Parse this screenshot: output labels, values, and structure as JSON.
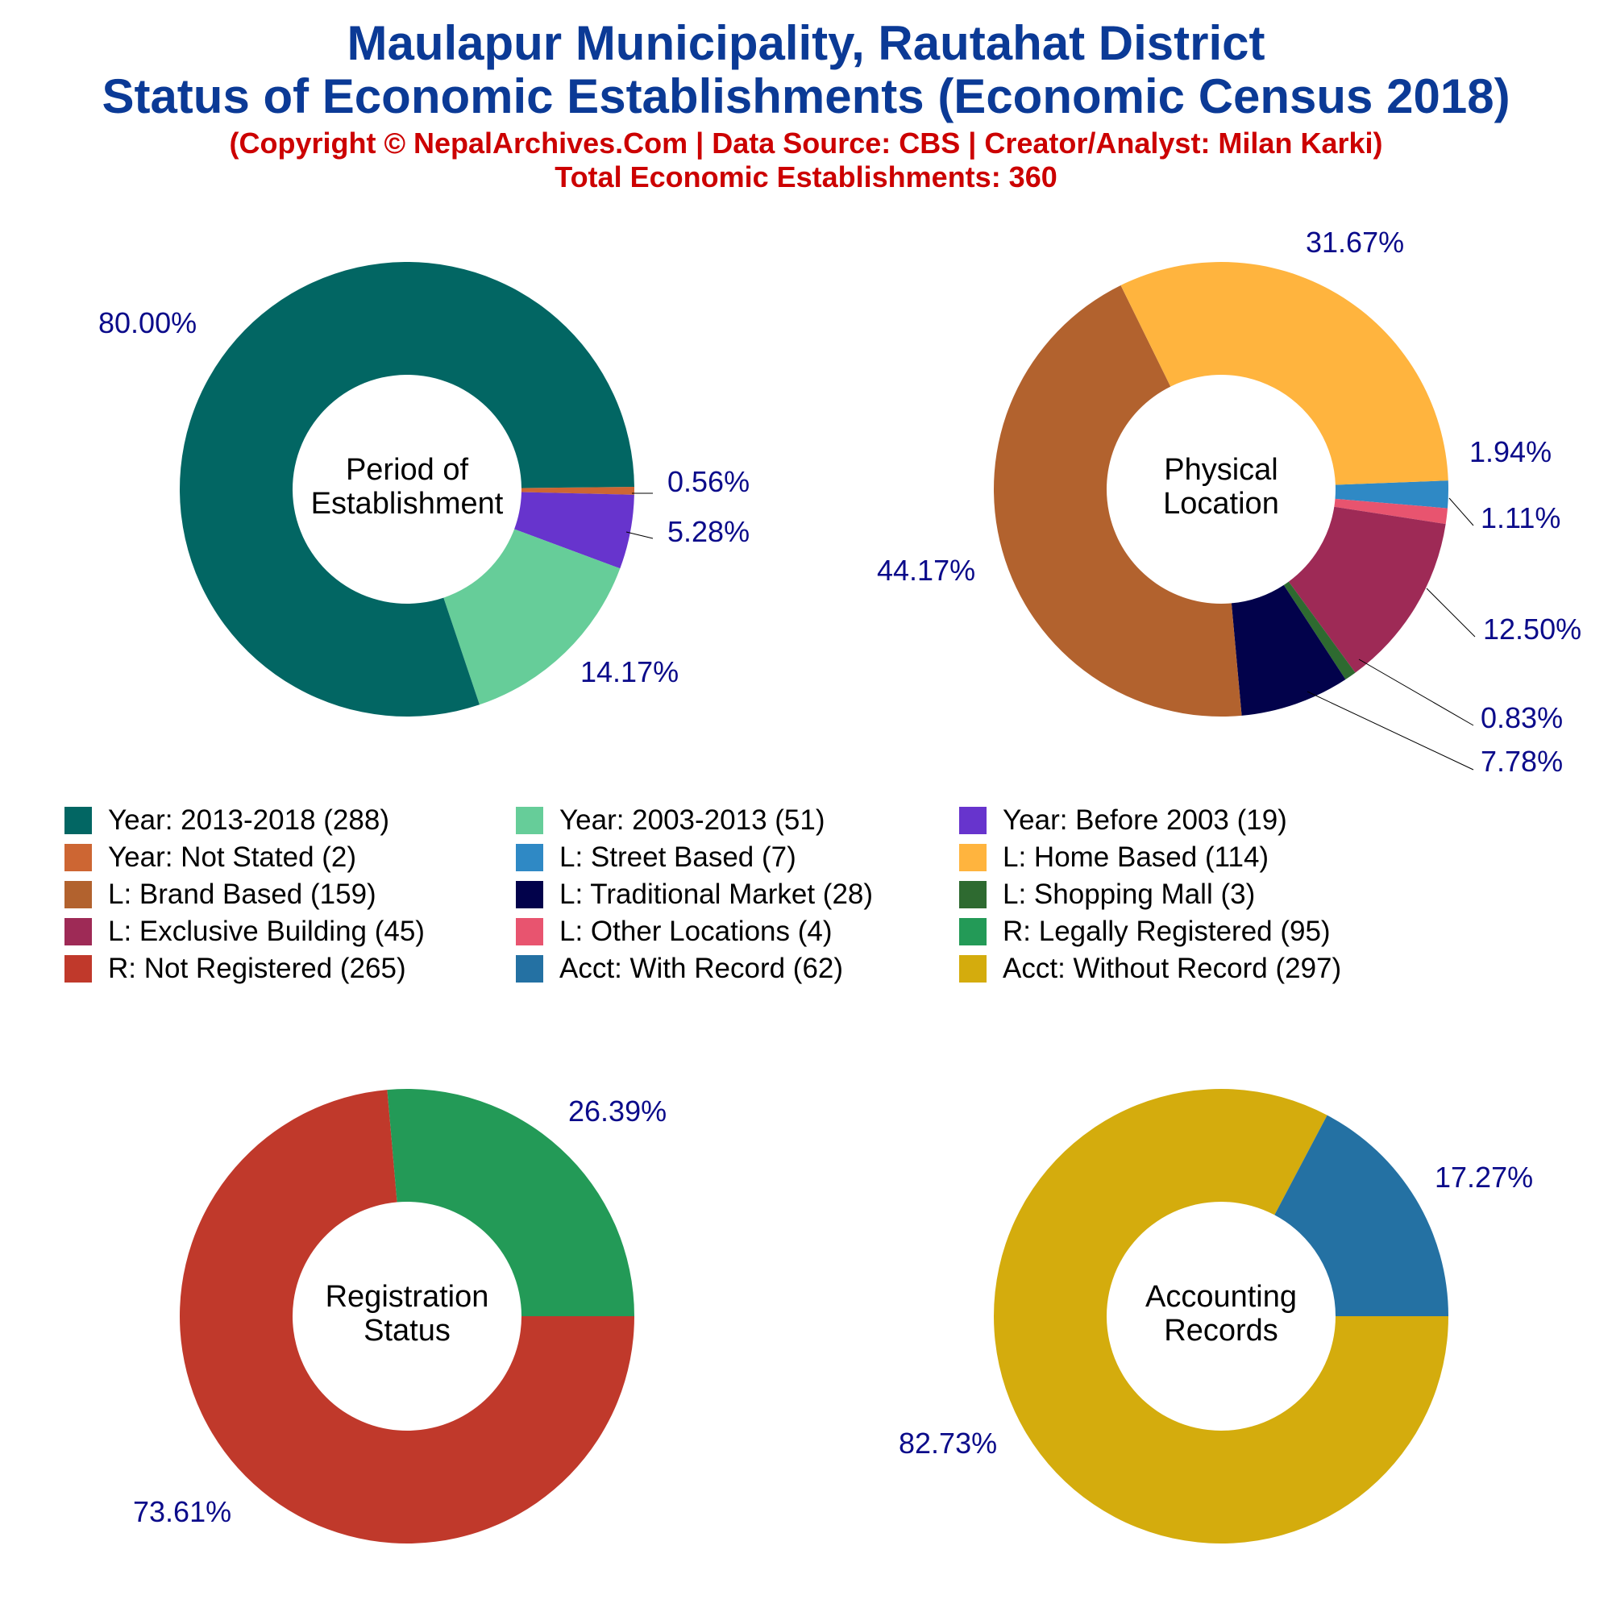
{
  "title_line1": "Maulapur Municipality, Rautahat District",
  "title_line2": "Status of Economic Establishments (Economic Census 2018)",
  "subtitle_line1": "(Copyright © NepalArchives.Com | Data Source: CBS | Creator/Analyst: Milan Karki)",
  "subtitle_line2": "Total Economic Establishments: 360",
  "legend": [
    {
      "label": "Year: 2013-2018 (288)",
      "color": "#026663"
    },
    {
      "label": "Year: 2003-2013 (51)",
      "color": "#66cd99"
    },
    {
      "label": "Year: Before 2003 (19)",
      "color": "#6734cd"
    },
    {
      "label": "Year: Not Stated (2)",
      "color": "#cd6633"
    },
    {
      "label": "L: Street Based (7)",
      "color": "#2f89c5"
    },
    {
      "label": "L: Home Based (114)",
      "color": "#ffb43e"
    },
    {
      "label": "L: Brand Based (159)",
      "color": "#b2622e"
    },
    {
      "label": "L: Traditional Market (28)",
      "color": "#02024b"
    },
    {
      "label": "L: Shopping Mall (3)",
      "color": "#2e6a30"
    },
    {
      "label": "L: Exclusive Building (45)",
      "color": "#9e2a56"
    },
    {
      "label": "L: Other Locations (4)",
      "color": "#e8546f"
    },
    {
      "label": "R: Legally Registered (95)",
      "color": "#239a57"
    },
    {
      "label": "R: Not Registered (265)",
      "color": "#c0392b"
    },
    {
      "label": "Acct: With Record (62)",
      "color": "#2471a3"
    },
    {
      "label": "Acct: Without Record (297)",
      "color": "#d4ac0d"
    }
  ],
  "chart_data": [
    {
      "type": "pie",
      "center_label": [
        "Period of",
        "Establishment"
      ],
      "slices": [
        {
          "category": "Year: Not Stated",
          "value": 2,
          "pct": "0.56%",
          "color": "#cd6633"
        },
        {
          "category": "Year: Before 2003",
          "value": 19,
          "pct": "5.28%",
          "color": "#6734cd"
        },
        {
          "category": "Year: 2003-2013",
          "value": 51,
          "pct": "14.17%",
          "color": "#66cd99"
        },
        {
          "category": "Year: 2013-2018",
          "value": 288,
          "pct": "80.00%",
          "color": "#026663"
        }
      ]
    },
    {
      "type": "pie",
      "center_label": [
        "Physical",
        "Location"
      ],
      "slices": [
        {
          "category": "L: Street Based",
          "value": 7,
          "pct": "1.94%",
          "color": "#2f89c5"
        },
        {
          "category": "L: Other Locations",
          "value": 4,
          "pct": "1.11%",
          "color": "#e8546f"
        },
        {
          "category": "L: Exclusive Building",
          "value": 45,
          "pct": "12.50%",
          "color": "#9e2a56"
        },
        {
          "category": "L: Shopping Mall",
          "value": 3,
          "pct": "0.83%",
          "color": "#2e6a30"
        },
        {
          "category": "L: Traditional Market",
          "value": 28,
          "pct": "7.78%",
          "color": "#02024b"
        },
        {
          "category": "L: Brand Based",
          "value": 159,
          "pct": "44.17%",
          "color": "#b2622e"
        },
        {
          "category": "L: Home Based",
          "value": 114,
          "pct": "31.67%",
          "color": "#ffb43e"
        }
      ]
    },
    {
      "type": "pie",
      "center_label": [
        "Registration",
        "Status"
      ],
      "slices": [
        {
          "category": "R: Not Registered",
          "value": 265,
          "pct": "73.61%",
          "color": "#c0392b"
        },
        {
          "category": "R: Legally Registered",
          "value": 95,
          "pct": "26.39%",
          "color": "#239a57"
        }
      ]
    },
    {
      "type": "pie",
      "center_label": [
        "Accounting",
        "Records"
      ],
      "slices": [
        {
          "category": "Acct: Without Record",
          "value": 297,
          "pct": "82.73%",
          "color": "#d4ac0d"
        },
        {
          "category": "Acct: With Record",
          "value": 62,
          "pct": "17.27%",
          "color": "#2471a3"
        }
      ]
    }
  ]
}
